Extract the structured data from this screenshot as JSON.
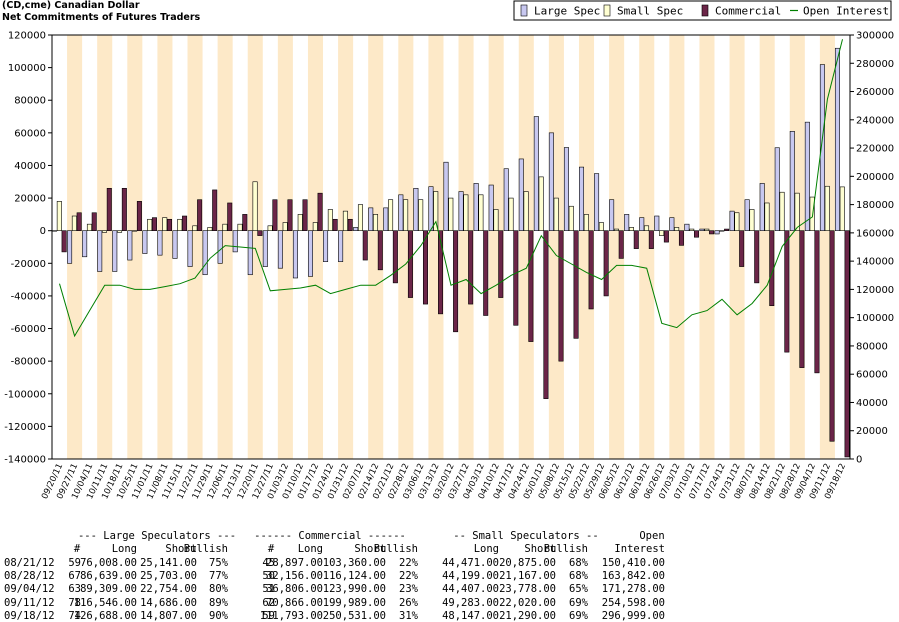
{
  "chart_data": {
    "type": "bar",
    "title": "(CD,cme) Canadian Dollar",
    "subtitle": "Net Commitments of Futures Traders",
    "categories": [
      "09/20/11",
      "09/27/11",
      "10/04/11",
      "10/11/11",
      "10/18/11",
      "10/25/11",
      "11/01/11",
      "11/08/11",
      "11/15/11",
      "11/22/11",
      "11/29/11",
      "12/06/11",
      "12/13/11",
      "12/20/11",
      "12/27/11",
      "01/03/12",
      "01/10/12",
      "01/17/12",
      "01/24/12",
      "01/31/12",
      "02/07/12",
      "02/14/12",
      "02/21/12",
      "02/28/12",
      "03/06/12",
      "03/13/12",
      "03/20/12",
      "03/27/12",
      "04/03/12",
      "04/10/12",
      "04/17/12",
      "04/24/12",
      "05/01/12",
      "05/08/12",
      "05/15/12",
      "05/22/12",
      "05/29/12",
      "06/05/12",
      "06/12/12",
      "06/19/12",
      "06/26/12",
      "07/03/12",
      "07/10/12",
      "07/17/12",
      "07/24/12",
      "07/31/12",
      "08/07/12",
      "08/14/12",
      "08/21/12",
      "08/28/12",
      "09/04/12",
      "09/11/12",
      "09/18/12"
    ],
    "series": [
      {
        "name": "Large Spec",
        "type": "bar",
        "color": "#c8c8f0",
        "values": [
          0,
          -20000,
          -16000,
          -25000,
          -25000,
          -18000,
          -14000,
          -15000,
          -17000,
          -22000,
          -27000,
          -20000,
          -13000,
          -27000,
          -22000,
          -23000,
          -29000,
          -28000,
          -19000,
          -19000,
          2000,
          14000,
          14000,
          22000,
          26000,
          27000,
          42000,
          24000,
          29000,
          28000,
          38000,
          44000,
          70000,
          60000,
          51000,
          39000,
          35000,
          19000,
          10000,
          8000,
          9000,
          8000,
          4000,
          1000,
          -2000,
          12000,
          19000,
          29000,
          50867,
          60936,
          66555,
          101860,
          111881
        ]
      },
      {
        "name": "Small Spec",
        "type": "bar",
        "color": "#ffffd2",
        "values": [
          18000,
          9000,
          4000,
          -1000,
          -1000,
          0,
          7000,
          8000,
          7000,
          3000,
          2000,
          4000,
          4000,
          30000,
          3000,
          5000,
          10000,
          5000,
          13000,
          12000,
          16000,
          10000,
          19000,
          19000,
          19000,
          24000,
          20000,
          22000,
          22000,
          13000,
          20000,
          24000,
          33000,
          20000,
          15000,
          10000,
          5000,
          1000,
          2000,
          3000,
          -3000,
          2000,
          1000,
          1000,
          0,
          11000,
          13000,
          17000,
          23596,
          23032,
          20629,
          27263,
          26857
        ]
      },
      {
        "name": "Commercial",
        "type": "bar",
        "color": "#6b2548",
        "values": [
          -13000,
          11000,
          11000,
          26000,
          26000,
          18000,
          8000,
          7000,
          9000,
          19000,
          25000,
          17000,
          10000,
          -3000,
          19000,
          19000,
          19000,
          23000,
          7000,
          7000,
          -18000,
          -24000,
          -32000,
          -41000,
          -45000,
          -51000,
          -62000,
          -45000,
          -52000,
          -41000,
          -58000,
          -68000,
          -103000,
          -80000,
          -66000,
          -48000,
          -40000,
          -17000,
          -11000,
          -11000,
          -7000,
          -9000,
          -4000,
          -2000,
          1000,
          -22000,
          -32000,
          -46000,
          -74463,
          -83968,
          -87184,
          -129123,
          -138738
        ]
      },
      {
        "name": "Open Interest",
        "type": "line",
        "axis": "y2",
        "color": "#008000",
        "values": [
          124000,
          87000,
          105000,
          123000,
          123000,
          120000,
          120000,
          122000,
          124000,
          128000,
          142000,
          151000,
          150000,
          149000,
          119000,
          120000,
          121000,
          123000,
          117000,
          120000,
          123000,
          123000,
          130000,
          138000,
          151000,
          168000,
          123000,
          127000,
          117000,
          123000,
          130000,
          135000,
          158000,
          144000,
          138000,
          132000,
          127000,
          137000,
          137000,
          135000,
          96000,
          93000,
          102000,
          105000,
          113000,
          102000,
          110000,
          123000,
          150410,
          163842,
          171278,
          254598,
          296999
        ]
      }
    ],
    "ylim": [
      -140000,
      120000
    ],
    "yticks": [
      -140000,
      -120000,
      -100000,
      -80000,
      -60000,
      -40000,
      -20000,
      0,
      20000,
      40000,
      60000,
      80000,
      100000,
      120000
    ],
    "y2lim": [
      0,
      300000
    ],
    "y2ticks": [
      0,
      20000,
      40000,
      60000,
      80000,
      100000,
      120000,
      140000,
      160000,
      180000,
      200000,
      220000,
      240000,
      260000,
      280000,
      300000
    ],
    "legend": "top-right",
    "stripe_color": "#fde9c8"
  },
  "table": {
    "groups": [
      "--- Large Speculators ---",
      "------ Commercial ------",
      "-- Small Speculators --",
      "Open"
    ],
    "header": [
      "#",
      "Long",
      "Short",
      "Bullish",
      "#",
      "Long",
      "Short",
      "Bullish",
      "Long",
      "Short",
      "Bullish",
      "Interest"
    ],
    "rows": [
      [
        "08/21/12",
        "59",
        "76,008.00",
        "25,141.00",
        "75%",
        "45",
        "28,897.00",
        "103,360.00",
        "22%",
        "44,471.00",
        "20,875.00",
        "68%",
        "150,410.00"
      ],
      [
        "08/28/12",
        "67",
        "86,639.00",
        "25,703.00",
        "77%",
        "50",
        "32,156.00",
        "116,124.00",
        "22%",
        "44,199.00",
        "21,167.00",
        "68%",
        "163,842.00"
      ],
      [
        "09/04/12",
        "63",
        "89,309.00",
        "22,754.00",
        "80%",
        "51",
        "36,806.00",
        "123,990.00",
        "23%",
        "44,407.00",
        "23,778.00",
        "65%",
        "171,278.00"
      ],
      [
        "09/11/12",
        "78",
        "116,546.00",
        "14,686.00",
        "89%",
        "62",
        "70,866.00",
        "199,989.00",
        "26%",
        "49,283.00",
        "22,020.00",
        "69%",
        "254,598.00"
      ],
      [
        "09/18/12",
        "74",
        "126,688.00",
        "14,807.00",
        "90%",
        "59",
        "111,793.00",
        "250,531.00",
        "31%",
        "48,147.00",
        "21,290.00",
        "69%",
        "296,999.00"
      ]
    ]
  }
}
